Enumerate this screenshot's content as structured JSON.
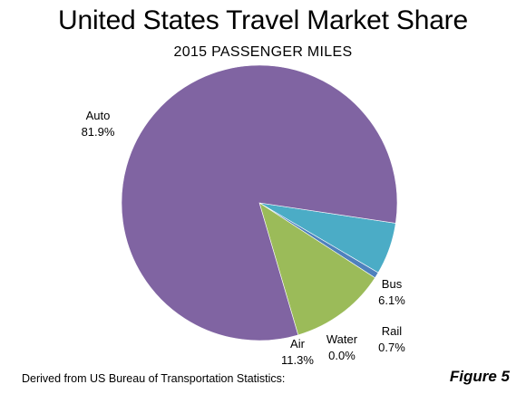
{
  "chart_data": {
    "type": "pie",
    "title": "United States Travel Market Share",
    "subtitle": "2015 PASSENGER MILES",
    "slices": [
      {
        "label": "Auto",
        "value": 81.9,
        "display": "81.9%",
        "color": "#8064a2"
      },
      {
        "label": "Bus",
        "value": 6.1,
        "display": "6.1%",
        "color": "#4bacc6"
      },
      {
        "label": "Rail",
        "value": 0.7,
        "display": "0.7%",
        "color": "#4f81bd"
      },
      {
        "label": "Water",
        "value": 0.0,
        "display": "0.0%",
        "color": "#f79646"
      },
      {
        "label": "Air",
        "value": 11.3,
        "display": "11.3%",
        "color": "#9bbb59"
      }
    ]
  },
  "footer": {
    "source": "Derived from US Bureau of Transportation Statistics:",
    "figure": "Figure 5"
  }
}
